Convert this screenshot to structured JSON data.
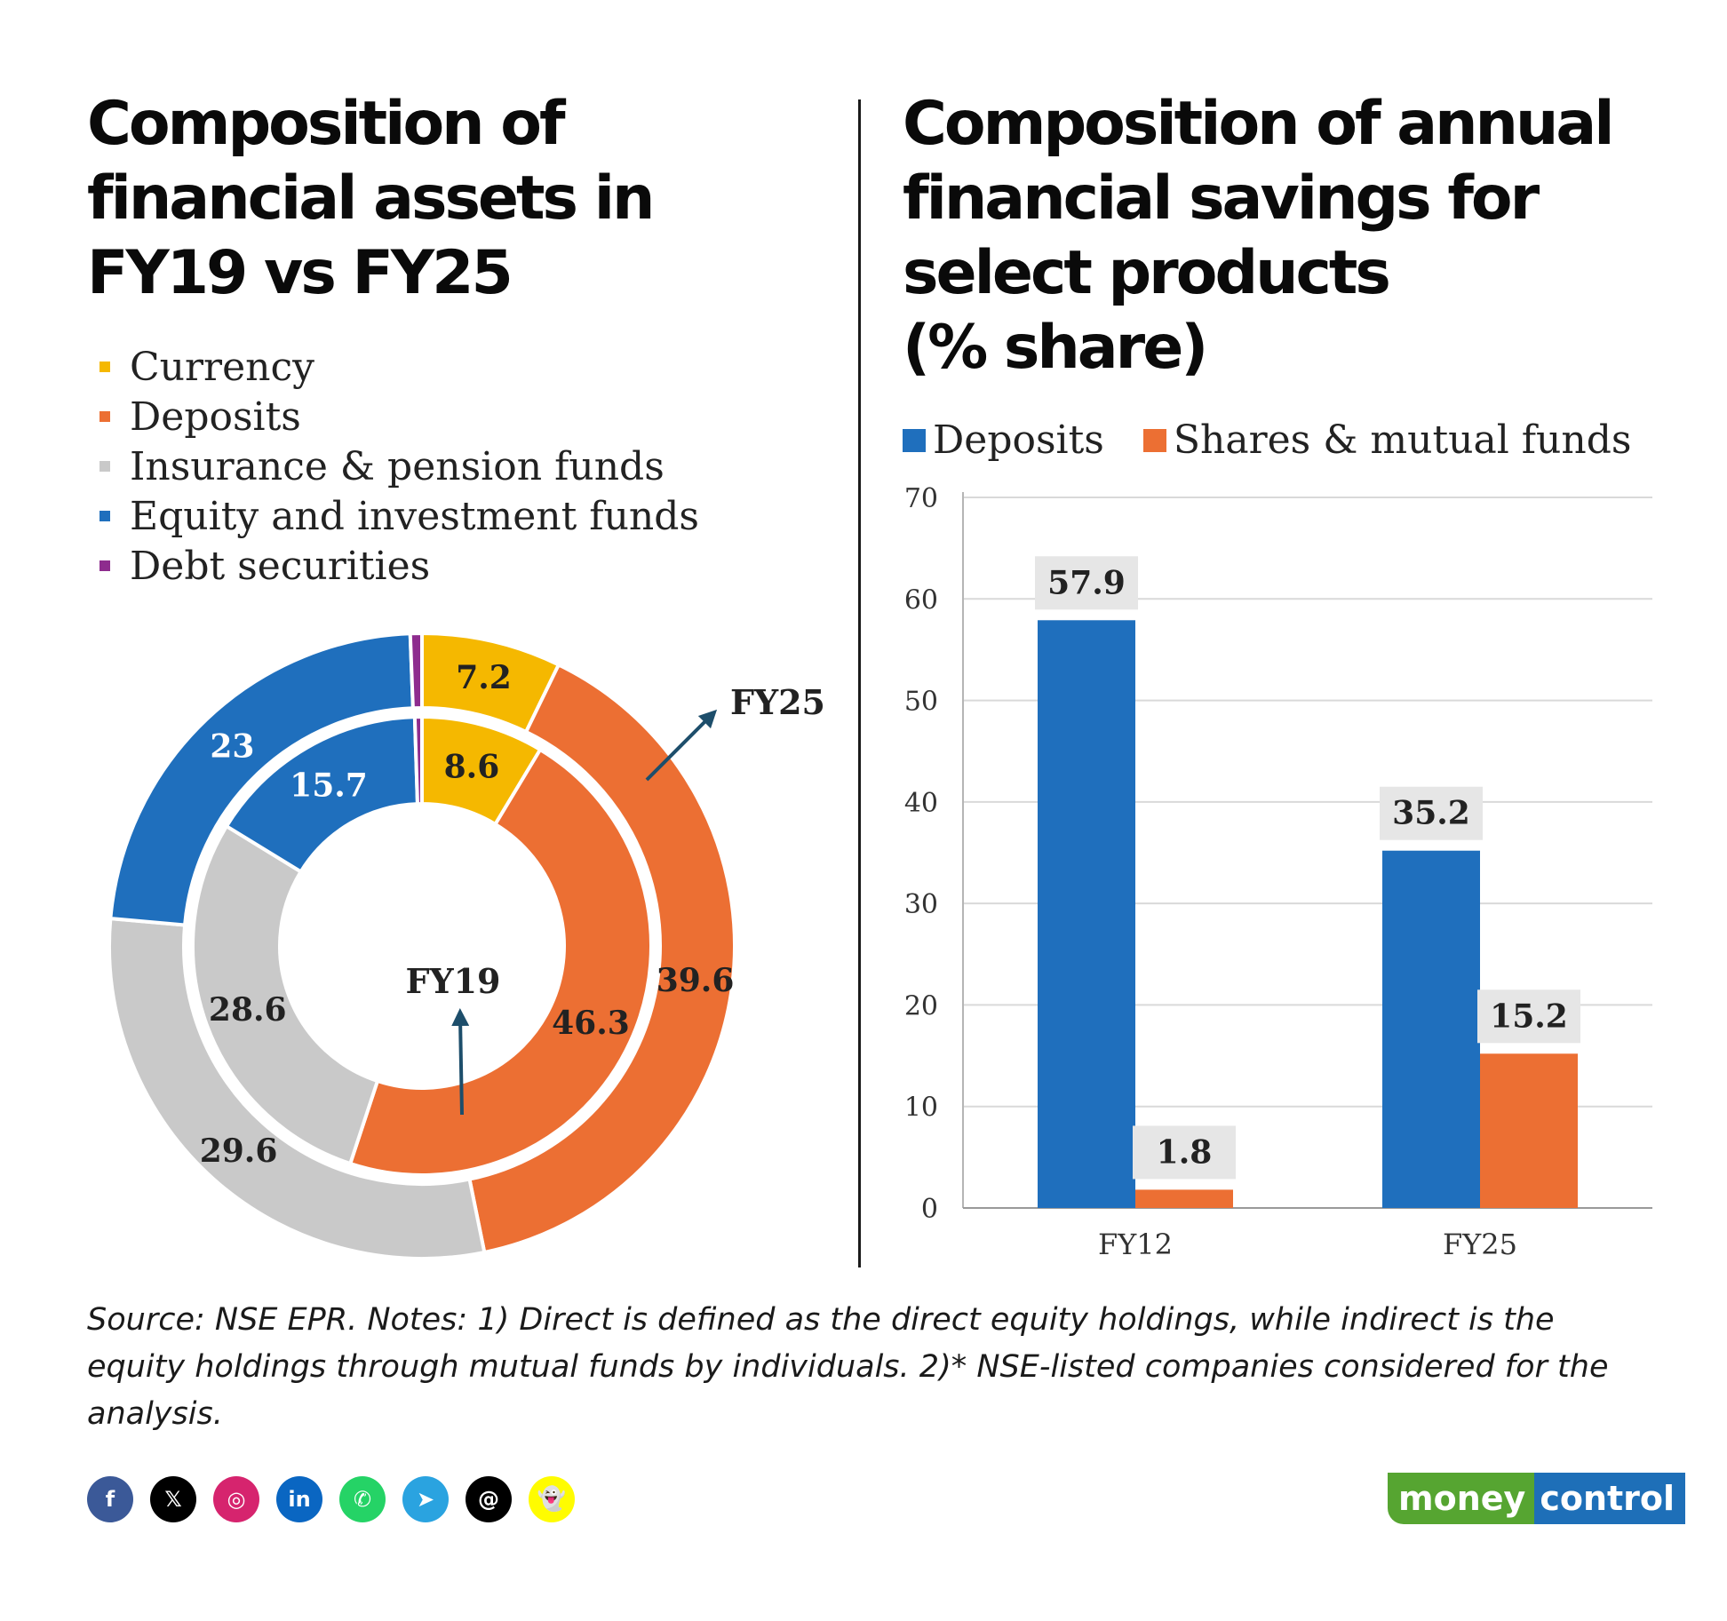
{
  "left": {
    "title_lines": [
      "Composition of",
      "financial assets in",
      "FY19 vs FY25"
    ],
    "legend": [
      {
        "label": "Currency",
        "color": "#f5b800"
      },
      {
        "label": "Deposits",
        "color": "#ec6f33"
      },
      {
        "label": "Insurance & pension funds",
        "color": "#c9c9c9"
      },
      {
        "label": "Equity and investment funds",
        "color": "#1f6fbd"
      },
      {
        "label": "Debt securities",
        "color": "#8e2c8e"
      }
    ]
  },
  "right": {
    "title_lines": [
      "Composition of annual",
      "financial savings for",
      "select products",
      "(% share)"
    ]
  },
  "chart_data": [
    {
      "type": "pie",
      "variant": "nested-donut",
      "categories": [
        "Currency",
        "Deposits",
        "Insurance & pension funds",
        "Equity and investment funds",
        "Debt securities"
      ],
      "colors": [
        "#f5b800",
        "#ec6f33",
        "#c9c9c9",
        "#1f6fbd",
        "#8e2c8e"
      ],
      "series": [
        {
          "name": "FY19",
          "ring": "inner",
          "values": [
            8.6,
            46.3,
            28.6,
            15.7,
            0.5
          ],
          "labels": [
            "8.6",
            "46.3",
            "28.6",
            "15.7",
            ""
          ]
        },
        {
          "name": "FY25",
          "ring": "outer",
          "values": [
            7.2,
            39.6,
            29.6,
            23,
            0.6
          ],
          "labels": [
            "7.2",
            "39.6",
            "29.6",
            "23",
            ""
          ]
        }
      ]
    },
    {
      "type": "bar",
      "categories": [
        "FY12",
        "FY25"
      ],
      "series": [
        {
          "name": "Deposits",
          "color": "#1f6fbd",
          "values": [
            57.9,
            35.2
          ]
        },
        {
          "name": "Shares & mutual funds",
          "color": "#ec6f33",
          "values": [
            1.8,
            15.2
          ]
        }
      ],
      "ylim": [
        0,
        70
      ],
      "yticks": [
        0,
        10,
        20,
        30,
        40,
        50,
        60,
        70
      ],
      "grid": true,
      "legend": "top-left"
    }
  ],
  "source_text": "Source: NSE EPR. Notes: 1) Direct is defined as the direct equity holdings, while indirect is the equity holdings through mutual funds by individuals. 2)* NSE-listed companies considered for the analysis.",
  "social": [
    {
      "name": "facebook",
      "glyph": "f",
      "color": "#3b5998"
    },
    {
      "name": "x",
      "glyph": "𝕏",
      "color": "#000000"
    },
    {
      "name": "instagram",
      "glyph": "◎",
      "color": "#d6246e"
    },
    {
      "name": "linkedin",
      "glyph": "in",
      "color": "#0a66c2"
    },
    {
      "name": "whatsapp",
      "glyph": "✆",
      "color": "#25d366"
    },
    {
      "name": "telegram",
      "glyph": "➤",
      "color": "#2aa3e0"
    },
    {
      "name": "threads",
      "glyph": "@",
      "color": "#000000"
    },
    {
      "name": "snapchat",
      "glyph": "👻",
      "color": "#fffc00"
    }
  ],
  "brand": {
    "part1": "money",
    "part2": "control"
  }
}
